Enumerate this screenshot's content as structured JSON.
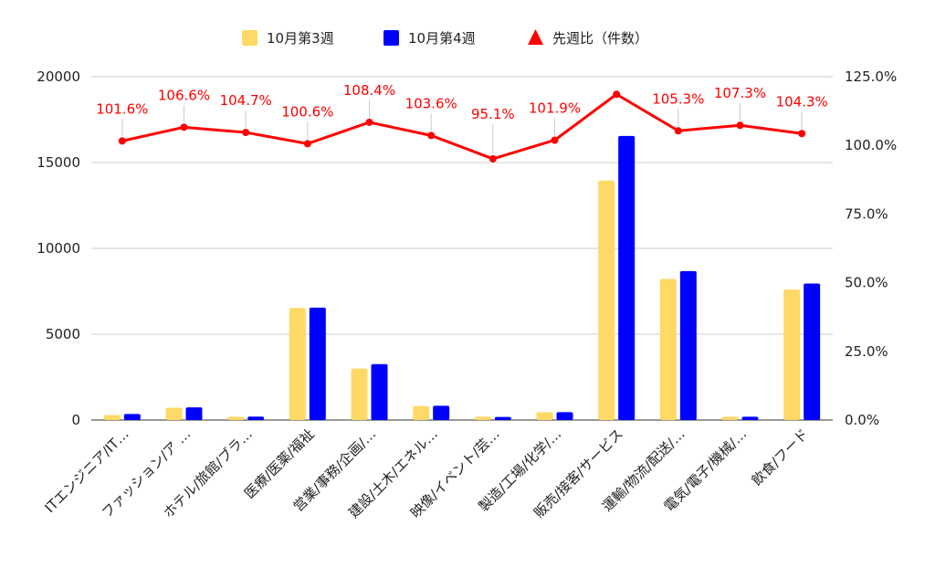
{
  "chart_data": {
    "type": "bar",
    "title": "",
    "categories": [
      "ITエンジニア/IT…",
      "ファッション/ア …",
      "ホテル/旅館/ブラ…",
      "医療/医薬/福祉",
      "営業/事務/企画/…",
      "建設/土木/エネル…",
      "映像/イベント/芸…",
      "製造/工場/化学/…",
      "販売/接客/サービス",
      "運輸/物流/配送/…",
      "電気/電子/機械/…",
      "飲食/フード"
    ],
    "series": [
      {
        "name": "10月第3週",
        "kind": "bar",
        "axis": "left",
        "color": "#ffd966",
        "values": [
          290,
          720,
          190,
          6530,
          3000,
          820,
          190,
          450,
          13950,
          8220,
          190,
          7600
        ]
      },
      {
        "name": "10月第4週",
        "kind": "bar",
        "axis": "left",
        "color": "#0000ff",
        "values": [
          350,
          740,
          200,
          6550,
          3260,
          830,
          180,
          460,
          16550,
          8680,
          190,
          7950
        ]
      },
      {
        "name": "先週比（件数）",
        "kind": "line",
        "axis": "right",
        "color": "#ff0000",
        "values": [
          101.6,
          106.6,
          104.7,
          100.6,
          108.4,
          103.6,
          95.1,
          101.9,
          118.6,
          105.3,
          107.3,
          104.3
        ],
        "labels": [
          "101.6%",
          "106.6%",
          "104.7%",
          "100.6%",
          "108.4%",
          "103.6%",
          "95.1%",
          "101.9%",
          "",
          "105.3%",
          "107.3%",
          "104.3%"
        ]
      }
    ],
    "y_left": {
      "min": 0,
      "max": 20000,
      "ticks": [
        "0",
        "5000",
        "10000",
        "15000",
        "20000"
      ],
      "tick_values": [
        0,
        5000,
        10000,
        15000,
        20000
      ]
    },
    "y_right": {
      "min": 0,
      "max": 125,
      "ticks": [
        "0.0%",
        "25.0%",
        "50.0%",
        "75.0%",
        "100.0%",
        "125.0%"
      ],
      "tick_values": [
        0,
        25,
        50,
        75,
        100,
        125
      ]
    },
    "grid": true,
    "legend_position": "top-center"
  }
}
